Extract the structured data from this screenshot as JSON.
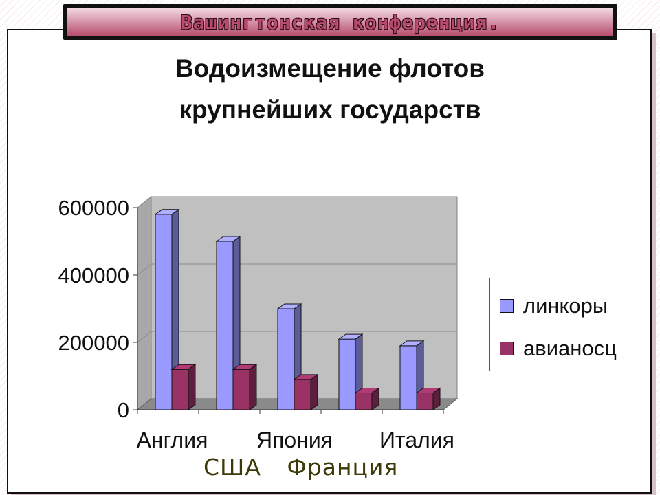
{
  "slide": {
    "banner_title": "Вашингтонская конференция.",
    "footer_labels": [
      "США",
      "Франция"
    ],
    "colors": {
      "banner": "#c9718d",
      "frame": "#111111"
    }
  },
  "chart_data": {
    "type": "bar",
    "title_lines": [
      "Водоизмещение флотов",
      "крупнейших государств"
    ],
    "categories": [
      "Англия",
      "США",
      "Япония",
      "Франция",
      "Италия"
    ],
    "visible_tick_labels": [
      "Англия",
      "Япония",
      "Италия"
    ],
    "series": [
      {
        "name": "линкоры",
        "color": "#9999ff",
        "values": [
          580000,
          500000,
          300000,
          210000,
          190000
        ]
      },
      {
        "name": "авианосц",
        "color": "#993366",
        "values": [
          120000,
          120000,
          90000,
          50000,
          50000
        ]
      }
    ],
    "yticks": [
      0,
      200000,
      400000,
      600000
    ],
    "ylim": [
      0,
      600000
    ],
    "grid": true,
    "legend_position": "right",
    "style": "3d"
  }
}
